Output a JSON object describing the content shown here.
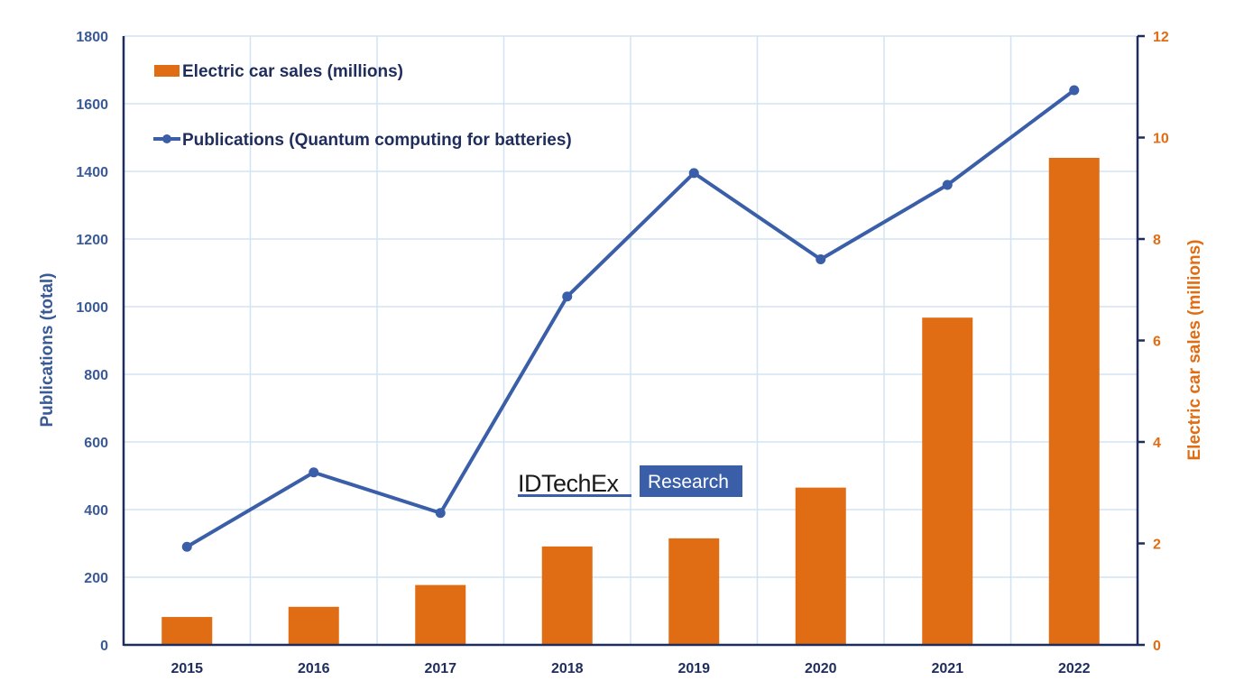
{
  "chart_data": {
    "type": "bar+line",
    "categories": [
      "2015",
      "2016",
      "2017",
      "2018",
      "2019",
      "2020",
      "2021",
      "2022"
    ],
    "series": [
      {
        "name": "Electric car sales (millions)",
        "type": "bar",
        "axis": "right",
        "color": "#e06c13",
        "values": [
          0.55,
          0.75,
          1.18,
          1.94,
          2.1,
          3.1,
          6.45,
          9.6
        ]
      },
      {
        "name": "Publications (Quantum computing for batteries)",
        "type": "line",
        "axis": "left",
        "color": "#3a5ea8",
        "values": [
          290,
          510,
          390,
          1030,
          1395,
          1140,
          1360,
          1640
        ]
      }
    ],
    "title": "",
    "xlabel": "",
    "ylabel_left": "Publications (total)",
    "ylabel_right": "Electric car sales (millions)",
    "ylim_left": [
      0,
      1800
    ],
    "ylim_right": [
      0,
      12
    ],
    "yticks_left": [
      "0",
      "200",
      "400",
      "600",
      "800",
      "1000",
      "1200",
      "1400",
      "1600",
      "1800"
    ],
    "yticks_right": [
      "0",
      "2",
      "4",
      "6",
      "8",
      "10",
      "12"
    ],
    "grid": true,
    "legend_position": "top-left"
  },
  "legend": {
    "bar_label": "Electric car sales (millions)",
    "line_label": "Publications (Quantum computing for batteries)"
  },
  "watermark": {
    "brand": "IDTechEx",
    "tag": "Research"
  },
  "colors": {
    "bar": "#e06c13",
    "line": "#3a5ea8",
    "axis": "#1f2d5c",
    "grid": "#d3e3f3",
    "left_text": "#3a5a96",
    "right_text": "#e06c13",
    "logo_box": "#3a5ea8"
  }
}
